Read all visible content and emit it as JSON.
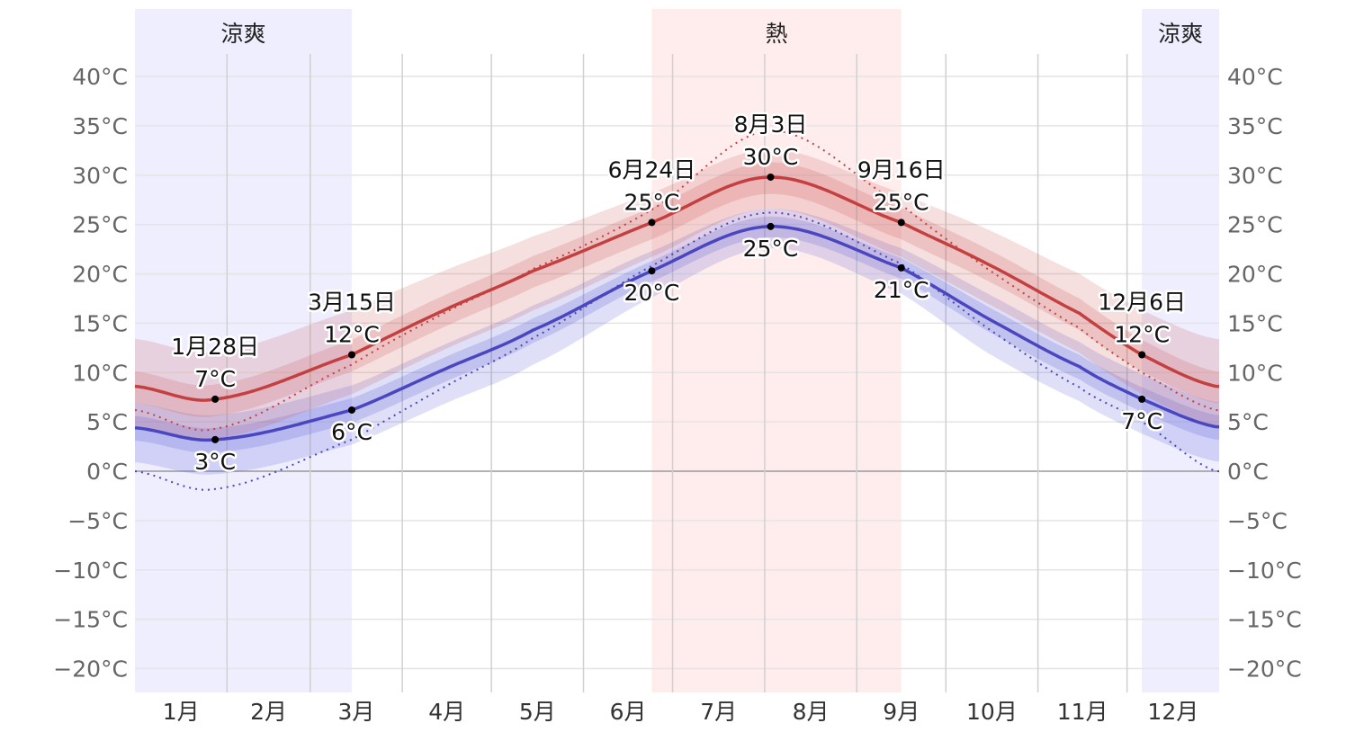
{
  "chart_data": {
    "type": "line",
    "title": "",
    "xlabel": "",
    "ylabel": "",
    "ylim": [
      -22,
      42
    ],
    "y_ticks": [
      40,
      35,
      30,
      25,
      20,
      15,
      10,
      5,
      0,
      -5,
      -10,
      -15,
      -20
    ],
    "y_tick_labels": [
      "40°C",
      "35°C",
      "30°C",
      "25°C",
      "20°C",
      "15°C",
      "10°C",
      "5°C",
      "0°C",
      "−5°C",
      "−10°C",
      "−15°C",
      "−20°C"
    ],
    "x_tick_labels": [
      "1月",
      "2月",
      "3月",
      "4月",
      "5月",
      "6月",
      "7月",
      "8月",
      "9月",
      "10月",
      "11月",
      "12月"
    ],
    "grid": true,
    "colors": {
      "high": "#c44040",
      "low": "#4a46c0",
      "high_band": "#c85050",
      "low_band": "#5050d0",
      "cool_season": "#eeeeff",
      "hot_season": "#ffeded"
    },
    "seasons": [
      {
        "label": "涼爽",
        "start_day": 0,
        "end_day": 73,
        "kind": "cool"
      },
      {
        "label": "熱",
        "start_day": 174,
        "end_day": 258,
        "kind": "hot"
      },
      {
        "label": "涼爽",
        "start_day": 339,
        "end_day": 365,
        "kind": "cool"
      }
    ],
    "day_of_year": [
      0,
      27,
      73,
      104,
      134,
      174,
      214,
      258,
      287,
      318,
      339,
      364
    ],
    "series": [
      {
        "key": "high",
        "values": [
          8.6,
          7.3,
          11.8,
          16.3,
          20.3,
          25.2,
          29.8,
          25.2,
          21.0,
          16.0,
          11.8,
          8.6
        ]
      },
      {
        "key": "low",
        "values": [
          4.4,
          3.2,
          6.2,
          10.3,
          14.3,
          20.3,
          24.8,
          20.6,
          15.5,
          10.6,
          7.3,
          4.5
        ]
      },
      {
        "key": "high_feels",
        "values": [
          6.2,
          4.3,
          10.8,
          16.0,
          20.5,
          26.5,
          34.5,
          27.0,
          20.5,
          14.5,
          10.0,
          6.2
        ]
      },
      {
        "key": "low_feels",
        "values": [
          0,
          -1.8,
          3.2,
          8.5,
          13.5,
          20.8,
          26.2,
          21.0,
          14.5,
          8.5,
          5.0,
          0
        ]
      }
    ],
    "bands": {
      "high_p90": [
        13.4,
        12.1,
        16.3,
        20.3,
        23.8,
        28.2,
        32.6,
        28.2,
        24.5,
        20.0,
        16.3,
        13.4
      ],
      "high_p75": [
        10.1,
        8.8,
        13.3,
        17.8,
        21.8,
        26.7,
        31.3,
        26.7,
        22.5,
        17.5,
        13.3,
        10.1
      ],
      "high_p25": [
        6.9,
        5.6,
        10.1,
        14.6,
        18.6,
        23.5,
        28.1,
        23.5,
        19.3,
        14.3,
        10.1,
        6.9
      ],
      "high_p10": [
        4.6,
        3.3,
        7.8,
        12.3,
        16.3,
        21.7,
        26.6,
        21.7,
        17.0,
        12.0,
        7.8,
        4.6
      ],
      "low_p90": [
        6.9,
        5.7,
        8.7,
        12.8,
        16.8,
        22.3,
        26.6,
        22.6,
        18.0,
        13.1,
        9.8,
        7.0
      ],
      "low_p75": [
        5.6,
        4.4,
        7.4,
        11.5,
        15.5,
        21.3,
        25.8,
        21.6,
        16.7,
        11.8,
        8.5,
        5.7
      ],
      "low_p25": [
        3.1,
        1.9,
        4.9,
        9.0,
        13.0,
        19.2,
        23.7,
        19.5,
        14.2,
        9.3,
        6.0,
        3.2
      ],
      "low_p10": [
        0.9,
        -0.3,
        2.7,
        6.8,
        10.8,
        17.6,
        22.6,
        18.0,
        12.0,
        7.1,
        3.8,
        1.0
      ]
    },
    "annotations": [
      {
        "day": 27,
        "date": "1月28日",
        "high": 7.3,
        "high_label": "7°C",
        "low": 3.2,
        "low_label": "3°C"
      },
      {
        "day": 73,
        "date": "3月15日",
        "high": 11.8,
        "high_label": "12°C",
        "low": 6.2,
        "low_label": "6°C"
      },
      {
        "day": 174,
        "date": "6月24日",
        "high": 25.2,
        "high_label": "25°C",
        "low": 20.3,
        "low_label": "20°C"
      },
      {
        "day": 214,
        "date": "8月3日",
        "high": 29.8,
        "high_label": "30°C",
        "low": 24.8,
        "low_label": "25°C"
      },
      {
        "day": 258,
        "date": "9月16日",
        "high": 25.2,
        "high_label": "25°C",
        "low": 20.6,
        "low_label": "21°C"
      },
      {
        "day": 339,
        "date": "12月6日",
        "high": 11.8,
        "high_label": "12°C",
        "low": 7.3,
        "low_label": "7°C"
      }
    ]
  }
}
